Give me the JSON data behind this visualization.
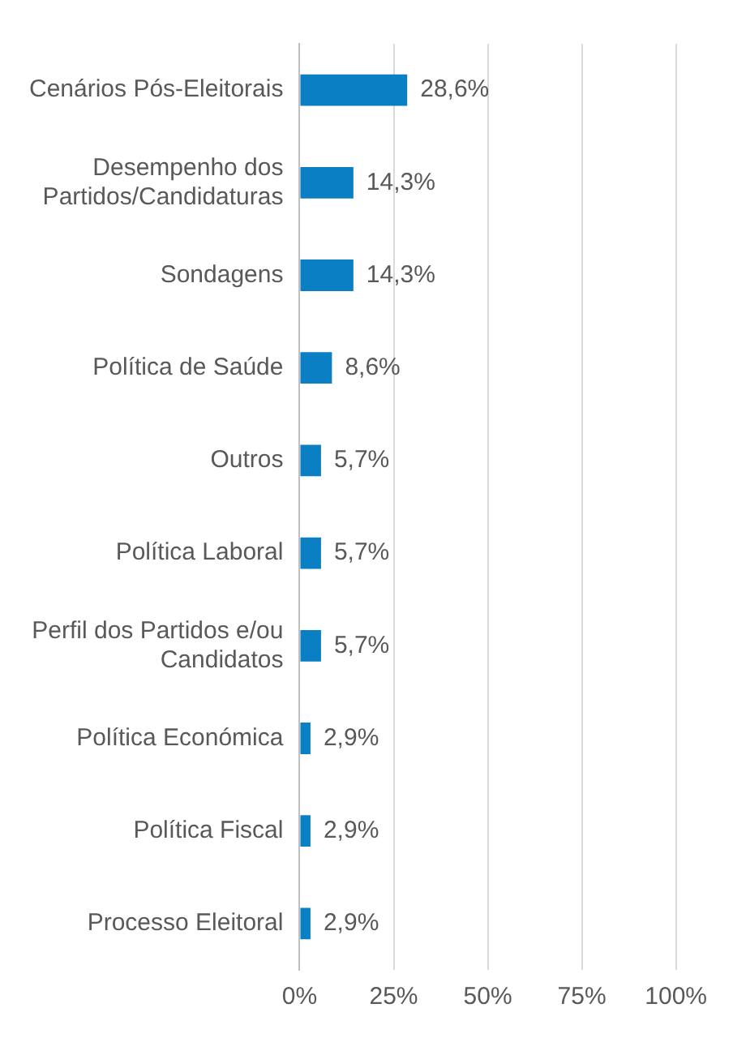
{
  "chart_data": {
    "type": "bar",
    "orientation": "horizontal",
    "categories": [
      "Cenários Pós-Eleitorais",
      "Desempenho dos Partidos/Candidaturas",
      "Sondagens",
      "Política de Saúde",
      "Outros",
      "Política Laboral",
      "Perfil dos Partidos e/ou Candidatos",
      "Política Económica",
      "Política Fiscal",
      "Processo Eleitoral"
    ],
    "values": [
      28.6,
      14.3,
      14.3,
      8.6,
      5.7,
      5.7,
      5.7,
      2.9,
      2.9,
      2.9
    ],
    "value_labels": [
      "28,6%",
      "14,3%",
      "14,3%",
      "8,6%",
      "5,7%",
      "5,7%",
      "5,7%",
      "2,9%",
      "2,9%",
      "2,9%"
    ],
    "color": "#0b7fc4",
    "xlim": [
      0,
      100
    ],
    "xticks": [
      {
        "value": 0,
        "label": "0%"
      },
      {
        "value": 25,
        "label": "25%"
      },
      {
        "value": 50,
        "label": "50%"
      },
      {
        "value": 75,
        "label": "75%"
      },
      {
        "value": 100,
        "label": "100%"
      }
    ],
    "grid": "x"
  }
}
